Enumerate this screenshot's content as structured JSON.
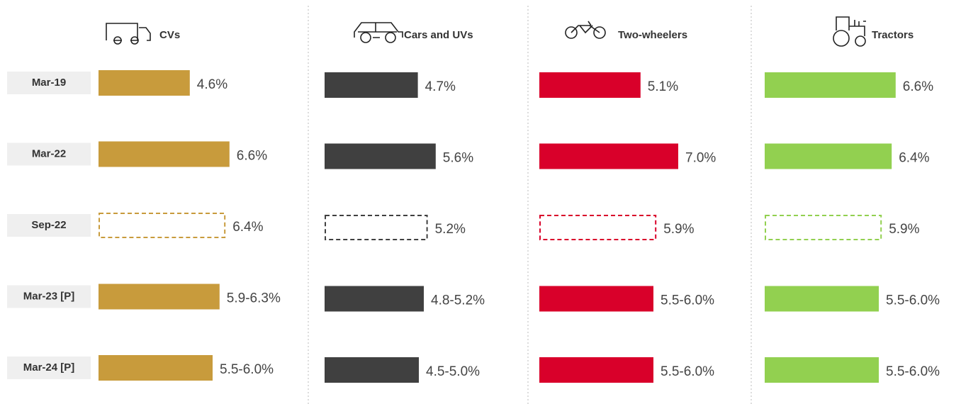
{
  "chart_data": [
    {
      "type": "bar",
      "title": "CVs",
      "categories": [
        "Mar-19",
        "Mar-22",
        "Sep-22",
        "Mar-23 [P]",
        "Mar-24 [P]"
      ],
      "values": [
        4.6,
        6.6,
        6.4,
        6.1,
        5.75
      ],
      "value_labels": [
        "4.6%",
        "6.6%",
        "6.4%",
        "5.9-6.3%",
        "5.5-6.0%"
      ],
      "color": "#c89b3c",
      "xlim": [
        0,
        10
      ],
      "styles": [
        "solid",
        "solid",
        "dashed",
        "solid",
        "solid"
      ]
    },
    {
      "type": "bar",
      "title": "Cars and UVs",
      "values": [
        4.7,
        5.6,
        5.2,
        5.0,
        4.75
      ],
      "value_labels": [
        "4.7%",
        "5.6%",
        "5.2%",
        "4.8-5.2%",
        "4.5-5.0%"
      ],
      "color": "#404040",
      "xlim": [
        0,
        10
      ],
      "styles": [
        "solid",
        "solid",
        "dashed",
        "solid",
        "solid"
      ]
    },
    {
      "type": "bar",
      "title": "Two-wheelers",
      "values": [
        5.1,
        7.0,
        5.9,
        5.75,
        5.75
      ],
      "value_labels": [
        "5.1%",
        "7.0%",
        "5.9%",
        "5.5-6.0%",
        "5.5-6.0%"
      ],
      "color": "#d9002a",
      "xlim": [
        0,
        10
      ],
      "styles": [
        "solid",
        "solid",
        "dashed",
        "solid",
        "solid"
      ]
    },
    {
      "type": "bar",
      "title": "Tractors",
      "values": [
        6.6,
        6.4,
        5.9,
        5.75,
        5.75
      ],
      "value_labels": [
        "6.6%",
        "6.4%",
        "5.9%",
        "5.5-6.0%",
        "5.5-6.0%"
      ],
      "color": "#92d050",
      "xlim": [
        0,
        10
      ],
      "styles": [
        "solid",
        "solid",
        "dashed",
        "solid",
        "solid"
      ]
    }
  ]
}
